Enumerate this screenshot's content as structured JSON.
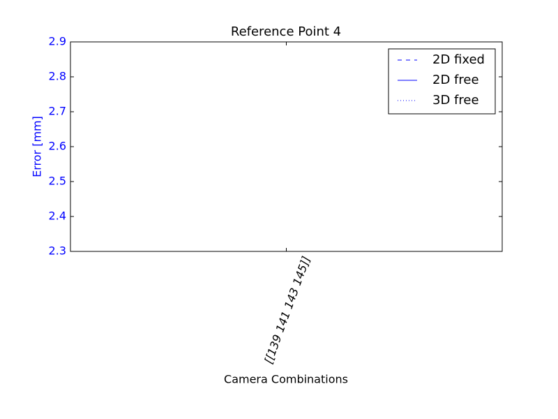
{
  "chart_data": {
    "type": "line",
    "title": "Reference Point 4",
    "xlabel": "Camera Combinations",
    "ylabel": "Error [mm]",
    "categories": [
      "[[139 141 143 145]]"
    ],
    "series": [
      {
        "name": "2D fixed",
        "color": "#0000ff",
        "linestyle": "dashed",
        "values": [
          null
        ]
      },
      {
        "name": "2D free",
        "color": "#0000ff",
        "linestyle": "solid",
        "values": [
          null
        ]
      },
      {
        "name": "3D free",
        "color": "#0000ff",
        "linestyle": "dotted",
        "values": [
          null
        ]
      }
    ],
    "ylim": [
      2.3,
      2.9
    ],
    "yticks": [
      2.3,
      2.4,
      2.5,
      2.6,
      2.7,
      2.8,
      2.9
    ],
    "ytick_color": "#0000ff",
    "legend": "upper right",
    "grid": false
  }
}
